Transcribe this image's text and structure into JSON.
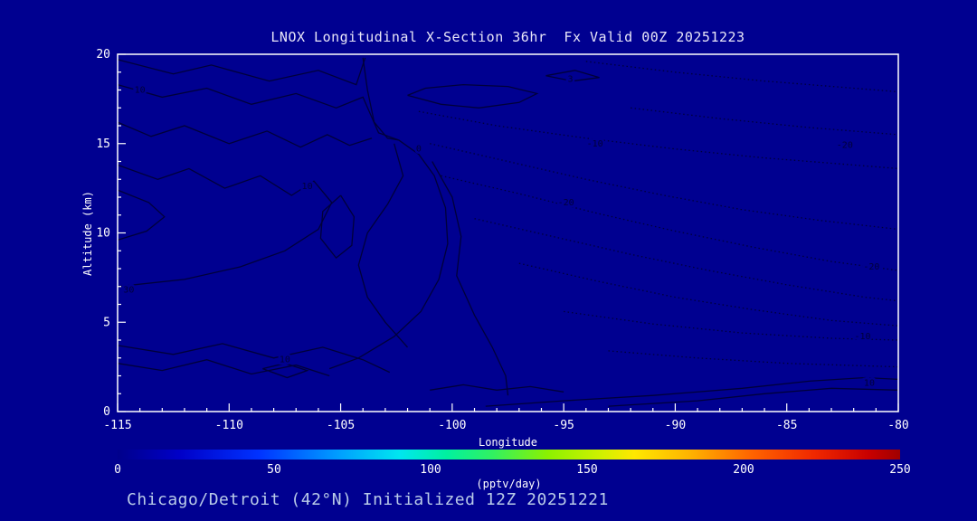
{
  "colors": {
    "background": "#000090",
    "frame": "#FFFFFF",
    "tick_text": "#FFFFFF",
    "contour": "#00003A",
    "title": "#E8E6F8",
    "subtitle": "#B9CBE8"
  },
  "chart_data": {
    "type": "contour",
    "title": "LNOX Longitudinal X-Section 36hr  Fx Valid 00Z 20251223",
    "subtitle": "Chicago/Detroit (42°N) Initialized 12Z 20251221",
    "xlabel": "Longitude",
    "ylabel": "Altitude (km)",
    "xlim": [
      -115,
      -80
    ],
    "ylim": [
      0,
      20
    ],
    "x_ticks": [
      -115,
      -110,
      -105,
      -100,
      -95,
      -90,
      -85,
      -80
    ],
    "y_ticks": [
      0,
      5,
      10,
      15,
      20
    ],
    "line_style_rule": "solid lines = positive values, dotted lines = negative values",
    "contour_levels_visible": [
      -20,
      -10,
      0,
      3,
      10,
      30
    ],
    "contour_labels": [
      {
        "text": "10",
        "lon": -114.0,
        "alt": 18.0
      },
      {
        "text": "10",
        "lon": -106.5,
        "alt": 12.6
      },
      {
        "text": "0",
        "lon": -101.5,
        "alt": 14.7
      },
      {
        "text": "3",
        "lon": -94.7,
        "alt": 18.6
      },
      {
        "text": "-10",
        "lon": -93.6,
        "alt": 15.0
      },
      {
        "text": "-20",
        "lon": -94.9,
        "alt": 11.7
      },
      {
        "text": "-20",
        "lon": -82.4,
        "alt": 14.9
      },
      {
        "text": "-20",
        "lon": -81.2,
        "alt": 8.1
      },
      {
        "text": "-10",
        "lon": -81.6,
        "alt": 4.2
      },
      {
        "text": "10",
        "lon": -107.5,
        "alt": 2.9
      },
      {
        "text": "10",
        "lon": -81.3,
        "alt": 1.6
      },
      {
        "text": "30",
        "lon": -114.5,
        "alt": 6.8
      }
    ],
    "contours": [
      {
        "level": 10,
        "style": "solid",
        "points": [
          [
            -115,
            19.7
          ],
          [
            -112.5,
            18.9
          ],
          [
            -110.8,
            19.4
          ],
          [
            -108.2,
            18.5
          ],
          [
            -106.0,
            19.1
          ],
          [
            -104.3,
            18.3
          ],
          [
            -103.9,
            19.8
          ]
        ]
      },
      {
        "level": 10,
        "style": "solid",
        "points": [
          [
            -115,
            18.3
          ],
          [
            -113,
            17.6
          ],
          [
            -111,
            18.1
          ],
          [
            -109,
            17.2
          ],
          [
            -107,
            17.8
          ],
          [
            -105.2,
            17.0
          ],
          [
            -104.0,
            17.6
          ],
          [
            -103.3,
            15.6
          ],
          [
            -102.4,
            15.2
          ]
        ]
      },
      {
        "level": 10,
        "style": "solid",
        "points": [
          [
            -115,
            16.2
          ],
          [
            -113.5,
            15.4
          ],
          [
            -112,
            16.0
          ],
          [
            -110,
            15.0
          ],
          [
            -108.3,
            15.7
          ],
          [
            -106.8,
            14.8
          ],
          [
            -105.6,
            15.5
          ],
          [
            -104.6,
            14.9
          ],
          [
            -103.6,
            15.3
          ]
        ]
      },
      {
        "level": 10,
        "style": "solid",
        "points": [
          [
            -115,
            13.8
          ],
          [
            -113.2,
            13.0
          ],
          [
            -111.8,
            13.6
          ],
          [
            -110.2,
            12.5
          ],
          [
            -108.6,
            13.2
          ],
          [
            -107.2,
            12.1
          ],
          [
            -106.2,
            12.9
          ],
          [
            -105.4,
            11.7
          ],
          [
            -106.0,
            10.2
          ],
          [
            -107.5,
            9.0
          ],
          [
            -109.5,
            8.1
          ],
          [
            -112,
            7.4
          ],
          [
            -115,
            7.0
          ]
        ]
      },
      {
        "level": 30,
        "style": "solid",
        "points": [
          [
            -115,
            12.4
          ],
          [
            -113.6,
            11.7
          ],
          [
            -112.9,
            10.9
          ],
          [
            -113.7,
            10.1
          ],
          [
            -115,
            9.6
          ]
        ]
      },
      {
        "level": 10,
        "style": "solid",
        "points": [
          [
            -105.0,
            12.1
          ],
          [
            -104.4,
            10.9
          ],
          [
            -104.5,
            9.3
          ],
          [
            -105.2,
            8.6
          ],
          [
            -105.9,
            9.7
          ],
          [
            -105.8,
            11.2
          ],
          [
            -105.0,
            12.1
          ]
        ]
      },
      {
        "level": 0,
        "style": "solid",
        "points": [
          [
            -102.4,
            15.2
          ],
          [
            -101.5,
            14.4
          ],
          [
            -100.8,
            13.2
          ],
          [
            -100.3,
            11.4
          ],
          [
            -100.2,
            9.4
          ],
          [
            -100.6,
            7.4
          ],
          [
            -101.4,
            5.6
          ],
          [
            -102.6,
            4.2
          ],
          [
            -104.2,
            3.0
          ],
          [
            -105.5,
            2.4
          ]
        ]
      },
      {
        "level": 10,
        "style": "solid",
        "points": [
          [
            -102.6,
            15.0
          ],
          [
            -102.2,
            13.2
          ],
          [
            -102.9,
            11.6
          ],
          [
            -103.8,
            10.0
          ],
          [
            -104.2,
            8.2
          ],
          [
            -103.8,
            6.4
          ],
          [
            -103.0,
            5.0
          ],
          [
            -102.0,
            3.6
          ]
        ]
      },
      {
        "level": 0,
        "style": "solid",
        "points": [
          [
            -100.9,
            14.0
          ],
          [
            -100.0,
            12.0
          ],
          [
            -99.6,
            9.8
          ],
          [
            -99.8,
            7.6
          ],
          [
            -99.0,
            5.4
          ],
          [
            -98.2,
            3.6
          ],
          [
            -97.6,
            2.0
          ],
          [
            -97.5,
            0.9
          ]
        ]
      },
      {
        "level": 0,
        "style": "solid",
        "points": [
          [
            -104.0,
            19.8
          ],
          [
            -103.8,
            18.0
          ],
          [
            -103.5,
            16.2
          ],
          [
            -102.9,
            15.3
          ],
          [
            -102.4,
            15.2
          ]
        ]
      },
      {
        "level": 0,
        "style": "solid",
        "points": [
          [
            -102.0,
            17.7
          ],
          [
            -100.5,
            17.2
          ],
          [
            -98.8,
            17.0
          ],
          [
            -97.0,
            17.3
          ],
          [
            -96.2,
            17.8
          ],
          [
            -97.5,
            18.2
          ],
          [
            -99.5,
            18.3
          ],
          [
            -101.2,
            18.1
          ],
          [
            -102.0,
            17.7
          ]
        ]
      },
      {
        "level": 3,
        "style": "solid",
        "points": [
          [
            -95.8,
            18.8
          ],
          [
            -94.6,
            18.5
          ],
          [
            -93.4,
            18.7
          ],
          [
            -94.5,
            19.1
          ],
          [
            -95.8,
            18.8
          ]
        ]
      },
      {
        "level": 10,
        "style": "solid",
        "points": [
          [
            -115,
            3.7
          ],
          [
            -112.5,
            3.2
          ],
          [
            -110.3,
            3.8
          ],
          [
            -108.0,
            3.0
          ],
          [
            -105.8,
            3.6
          ],
          [
            -104.0,
            2.9
          ],
          [
            -102.8,
            2.2
          ]
        ]
      },
      {
        "level": 10,
        "style": "solid",
        "points": [
          [
            -115,
            2.7
          ],
          [
            -113,
            2.3
          ],
          [
            -111,
            2.9
          ],
          [
            -109,
            2.1
          ],
          [
            -107,
            2.6
          ],
          [
            -105.5,
            2.0
          ]
        ]
      },
      {
        "level": 10,
        "style": "solid",
        "points": [
          [
            -108.5,
            2.4
          ],
          [
            -107.5,
            2.7
          ],
          [
            -106.5,
            2.3
          ],
          [
            -107.4,
            1.9
          ],
          [
            -108.5,
            2.4
          ]
        ]
      },
      {
        "level": 10,
        "style": "solid",
        "points": [
          [
            -98.5,
            0.3
          ],
          [
            -95,
            0.6
          ],
          [
            -91,
            0.9
          ],
          [
            -87,
            1.3
          ],
          [
            -84,
            1.7
          ],
          [
            -81.5,
            1.9
          ],
          [
            -80,
            1.8
          ]
        ]
      },
      {
        "level": 10,
        "style": "solid",
        "points": [
          [
            -93,
            0.3
          ],
          [
            -89,
            0.6
          ],
          [
            -86,
            1.0
          ],
          [
            -83,
            1.3
          ],
          [
            -80,
            1.2
          ]
        ]
      },
      {
        "level": 0,
        "style": "solid",
        "points": [
          [
            -101,
            1.2
          ],
          [
            -99.5,
            1.5
          ],
          [
            -98,
            1.2
          ],
          [
            -96.5,
            1.4
          ],
          [
            -95,
            1.1
          ]
        ]
      },
      {
        "level": -10,
        "style": "dotted",
        "points": [
          [
            -101.5,
            16.8
          ],
          [
            -98,
            16.0
          ],
          [
            -94,
            15.3
          ],
          [
            -90,
            14.7
          ],
          [
            -86,
            14.2
          ],
          [
            -82,
            13.8
          ],
          [
            -80,
            13.6
          ]
        ]
      },
      {
        "level": -10,
        "style": "dotted",
        "points": [
          [
            -101,
            15.0
          ],
          [
            -97.5,
            14.0
          ],
          [
            -94,
            13.0
          ],
          [
            -90.5,
            12.1
          ],
          [
            -87,
            11.3
          ],
          [
            -83.5,
            10.7
          ],
          [
            -80,
            10.2
          ]
        ]
      },
      {
        "level": -20,
        "style": "dotted",
        "points": [
          [
            -100.5,
            13.2
          ],
          [
            -97,
            12.2
          ],
          [
            -93.5,
            11.1
          ],
          [
            -90,
            10.1
          ],
          [
            -86.5,
            9.2
          ],
          [
            -83,
            8.4
          ],
          [
            -80,
            7.9
          ]
        ]
      },
      {
        "level": -20,
        "style": "dotted",
        "points": [
          [
            -99,
            10.8
          ],
          [
            -95.5,
            9.8
          ],
          [
            -92,
            8.8
          ],
          [
            -88.5,
            7.9
          ],
          [
            -85,
            7.1
          ],
          [
            -81.5,
            6.4
          ],
          [
            -80,
            6.2
          ]
        ]
      },
      {
        "level": -20,
        "style": "dotted",
        "points": [
          [
            -97,
            8.3
          ],
          [
            -93.5,
            7.3
          ],
          [
            -90,
            6.4
          ],
          [
            -86.5,
            5.7
          ],
          [
            -83,
            5.1
          ],
          [
            -80,
            4.8
          ]
        ]
      },
      {
        "level": -10,
        "style": "dotted",
        "points": [
          [
            -95,
            5.6
          ],
          [
            -91,
            4.9
          ],
          [
            -87,
            4.4
          ],
          [
            -83,
            4.1
          ],
          [
            -80,
            4.0
          ]
        ]
      },
      {
        "level": -10,
        "style": "dotted",
        "points": [
          [
            -93,
            3.4
          ],
          [
            -89,
            3.0
          ],
          [
            -85,
            2.7
          ],
          [
            -80,
            2.5
          ]
        ]
      },
      {
        "level": -10,
        "style": "dotted",
        "points": [
          [
            -94,
            19.6
          ],
          [
            -90,
            19.0
          ],
          [
            -86,
            18.5
          ],
          [
            -82,
            18.1
          ],
          [
            -80,
            17.9
          ]
        ]
      },
      {
        "level": -20,
        "style": "dotted",
        "points": [
          [
            -92,
            17.0
          ],
          [
            -88,
            16.4
          ],
          [
            -84,
            15.9
          ],
          [
            -80,
            15.5
          ]
        ]
      }
    ],
    "colorbar": {
      "min": 0,
      "max": 250,
      "ticks": [
        0,
        50,
        100,
        150,
        200,
        250
      ],
      "unit_label": "(pptv/day)",
      "stops": [
        {
          "pos": 0.0,
          "color": "#00008B"
        },
        {
          "pos": 0.08,
          "color": "#0000C8"
        },
        {
          "pos": 0.18,
          "color": "#0032FF"
        },
        {
          "pos": 0.28,
          "color": "#009CFF"
        },
        {
          "pos": 0.36,
          "color": "#00E6F0"
        },
        {
          "pos": 0.42,
          "color": "#00F0A0"
        },
        {
          "pos": 0.48,
          "color": "#32F060"
        },
        {
          "pos": 0.55,
          "color": "#8CF000"
        },
        {
          "pos": 0.62,
          "color": "#D2F000"
        },
        {
          "pos": 0.66,
          "color": "#FFE800"
        },
        {
          "pos": 0.73,
          "color": "#FFB400"
        },
        {
          "pos": 0.81,
          "color": "#FF6400"
        },
        {
          "pos": 0.89,
          "color": "#F02800"
        },
        {
          "pos": 0.96,
          "color": "#C80000"
        },
        {
          "pos": 1.0,
          "color": "#A00000"
        }
      ]
    }
  }
}
